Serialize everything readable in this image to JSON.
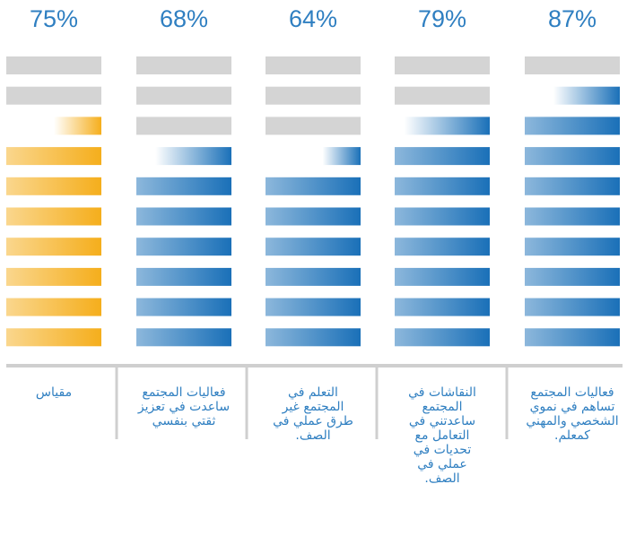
{
  "chart_data": {
    "type": "pictograph",
    "categories": [
      "مقياس",
      "فعاليات المجتمع ساعدت في تعزيز ثقتي بنفسي",
      "التعلم في المجتمع غير طرق عملي في الصف.",
      "النقاشات في المجتمع ساعدتني في التعامل مع تحديات في عملي في الصف.",
      "فعاليات المجتمع تساهم في نموي الشخصي والمهني كمعلم."
    ],
    "values": [
      75,
      68,
      64,
      79,
      87
    ],
    "value_labels": [
      "75%",
      "68%",
      "64%",
      "79%",
      "87%"
    ],
    "colors": [
      "#f5ae1c",
      "#1a70b8",
      "#1a70b8",
      "#1a70b8",
      "#1a70b8"
    ],
    "ylim": [
      0,
      100
    ]
  }
}
